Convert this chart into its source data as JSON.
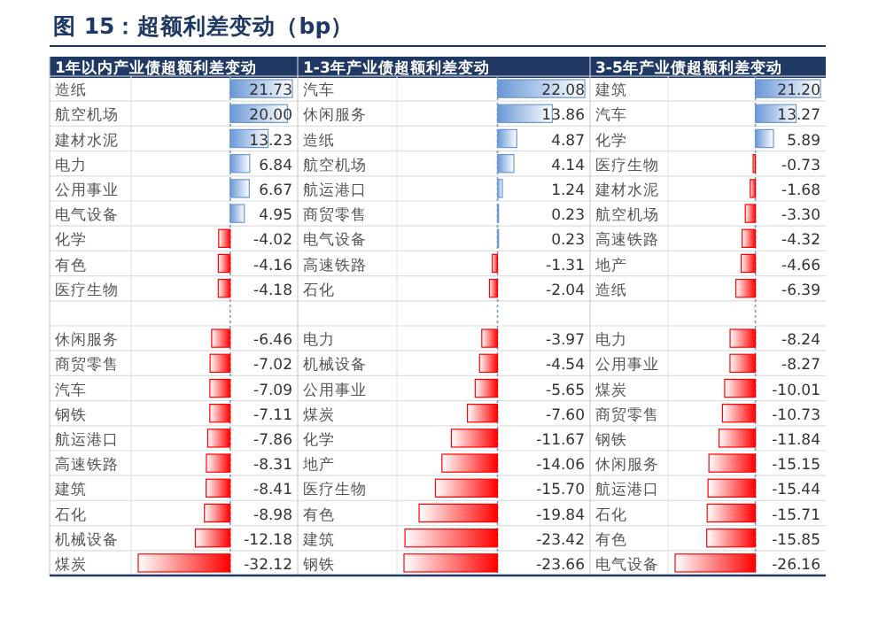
{
  "chart_data": [
    {
      "type": "bar",
      "orientation": "horizontal",
      "title": "图 15：超额利差变动（bp）",
      "subtitle": "1年以内产业债超额利差变动",
      "categories": [
        "造纸",
        "航空机场",
        "建材水泥",
        "电力",
        "公用事业",
        "电气设备",
        "化学",
        "有色",
        "医疗生物",
        null,
        "休闲服务",
        "商贸零售",
        "汽车",
        "钢铁",
        "航运港口",
        "高速铁路",
        "建筑",
        "石化",
        "机械设备",
        "煤炭"
      ],
      "values": [
        21.73,
        20.0,
        13.23,
        6.84,
        6.67,
        4.95,
        -4.02,
        -4.16,
        -4.18,
        null,
        -6.46,
        -7.02,
        -7.09,
        -7.11,
        -7.86,
        -8.31,
        -8.41,
        -8.98,
        -12.18,
        -32.12
      ],
      "value_labels": [
        "21.73",
        "20.00",
        "13.23",
        "6.84",
        "6.67",
        "4.95",
        "-4.02",
        "-4.16",
        "-4.18",
        null,
        "-6.46",
        "-7.02",
        "-7.09",
        "-7.11",
        "-7.86",
        "-8.31",
        "-8.41",
        "-8.98",
        "-12.18",
        "-32.12"
      ],
      "colors": [
        "#6a98d6",
        "#6a98d6",
        "#6a98d6",
        "#6a98d6",
        "#6a98d6",
        "#6a98d6",
        "#ff0000",
        "#ff0000",
        "#ff0000",
        null,
        "#ff0000",
        "#ff0000",
        "#ff0000",
        "#ff0000",
        "#ff0000",
        "#ff0000",
        "#ff0000",
        "#ff0000",
        "#ff0000",
        "#ff0000"
      ],
      "ref_lines": [
        {
          "axis": "x",
          "value": 0,
          "color": "#7a9cc8",
          "line_style": "dashed"
        }
      ]
    },
    {
      "type": "bar",
      "orientation": "horizontal",
      "subtitle": "1-3年产业债超额利差变动",
      "categories": [
        "汽车",
        "休闲服务",
        "造纸",
        "航空机场",
        "航运港口",
        "商贸零售",
        "电气设备",
        "高速铁路",
        "石化",
        null,
        "电力",
        "机械设备",
        "公用事业",
        "煤炭",
        "化学",
        "地产",
        "医疗生物",
        "有色",
        "建筑",
        "钢铁"
      ],
      "values": [
        22.08,
        13.86,
        4.87,
        4.14,
        1.24,
        0.23,
        0.23,
        -1.31,
        -2.04,
        null,
        -3.97,
        -4.54,
        -5.65,
        -7.6,
        -11.67,
        -14.06,
        -15.7,
        -19.84,
        -23.42,
        -23.66
      ],
      "value_labels": [
        "22.08",
        "13.86",
        "4.87",
        "4.14",
        "1.24",
        "0.23",
        "0.23",
        "-1.31",
        "-2.04",
        null,
        "-3.97",
        "-4.54",
        "-5.65",
        "-7.60",
        "-11.67",
        "-14.06",
        "-15.70",
        "-19.84",
        "-23.42",
        "-23.66"
      ],
      "colors": [
        "#6a98d6",
        "#6a98d6",
        "#6a98d6",
        "#6a98d6",
        "#6a98d6",
        "#6a98d6",
        "#6a98d6",
        "#ff0000",
        "#ff0000",
        null,
        "#ff0000",
        "#ff0000",
        "#ff0000",
        "#ff0000",
        "#ff0000",
        "#ff0000",
        "#ff0000",
        "#ff0000",
        "#ff0000",
        "#ff0000"
      ],
      "ref_lines": [
        {
          "axis": "x",
          "value": 0,
          "color": "#7a9cc8",
          "line_style": "dashed"
        }
      ]
    },
    {
      "type": "bar",
      "orientation": "horizontal",
      "subtitle": "3-5年产业债超额利差变动",
      "categories": [
        "建筑",
        "汽车",
        "化学",
        "医疗生物",
        "建材水泥",
        "航空机场",
        "高速铁路",
        "地产",
        "造纸",
        null,
        "电力",
        "公用事业",
        "煤炭",
        "商贸零售",
        "钢铁",
        "休闲服务",
        "航运港口",
        "石化",
        "有色",
        "电气设备"
      ],
      "values": [
        21.2,
        13.27,
        5.89,
        -0.73,
        -1.68,
        -3.3,
        -4.32,
        -4.66,
        -6.39,
        null,
        -8.24,
        -8.27,
        -10.01,
        -10.73,
        -11.84,
        -15.15,
        -15.44,
        -15.71,
        -15.85,
        -26.16
      ],
      "value_labels": [
        "21.20",
        "13.27",
        "5.89",
        "-0.73",
        "-1.68",
        "-3.30",
        "-4.32",
        "-4.66",
        "-6.39",
        null,
        "-8.24",
        "-8.27",
        "-10.01",
        "-10.73",
        "-11.84",
        "-15.15",
        "-15.44",
        "-15.71",
        "-15.85",
        "-26.16"
      ],
      "colors": [
        "#6a98d6",
        "#6a98d6",
        "#6a98d6",
        "#ff0000",
        "#ff0000",
        "#ff0000",
        "#ff0000",
        "#ff0000",
        "#ff0000",
        null,
        "#ff0000",
        "#ff0000",
        "#ff0000",
        "#ff0000",
        "#ff0000",
        "#ff0000",
        "#ff0000",
        "#ff0000",
        "#ff0000",
        "#ff0000"
      ],
      "ref_lines": [
        {
          "axis": "x",
          "value": 0,
          "color": "#7a9cc8",
          "line_style": "dashed"
        }
      ]
    }
  ]
}
